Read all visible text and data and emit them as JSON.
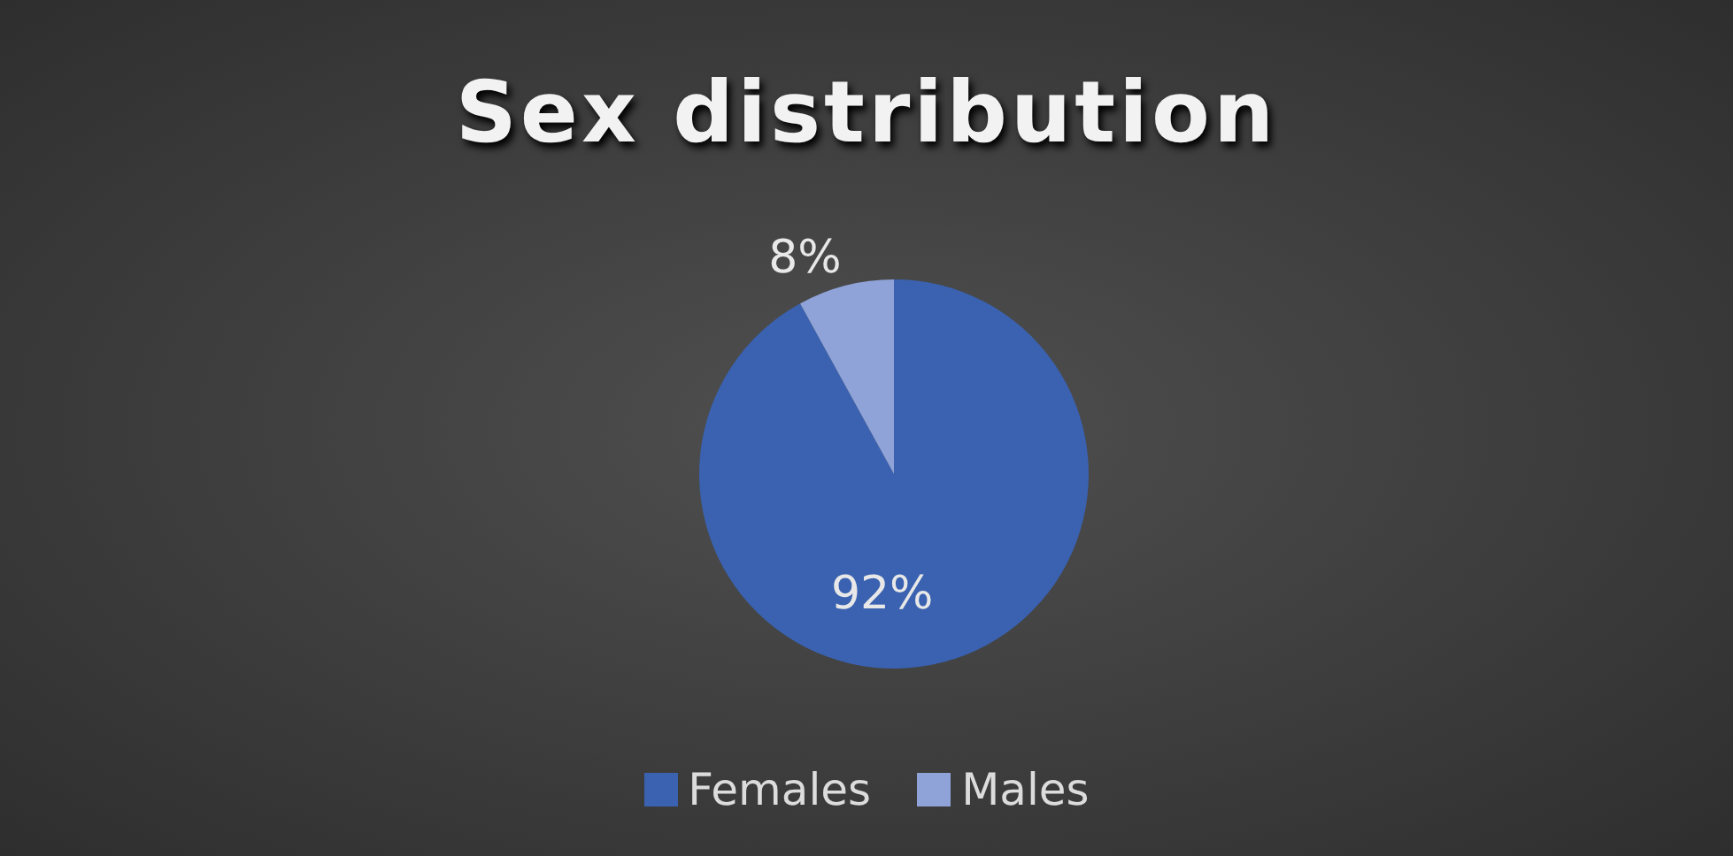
{
  "chart_data": {
    "type": "pie",
    "title": "Sex distribution",
    "categories": [
      "Females",
      "Males"
    ],
    "values": [
      92,
      8
    ],
    "value_labels": [
      "92%",
      "8%"
    ],
    "colors": [
      "#3a62b0",
      "#8fa3d8"
    ],
    "legend": "bottom"
  }
}
